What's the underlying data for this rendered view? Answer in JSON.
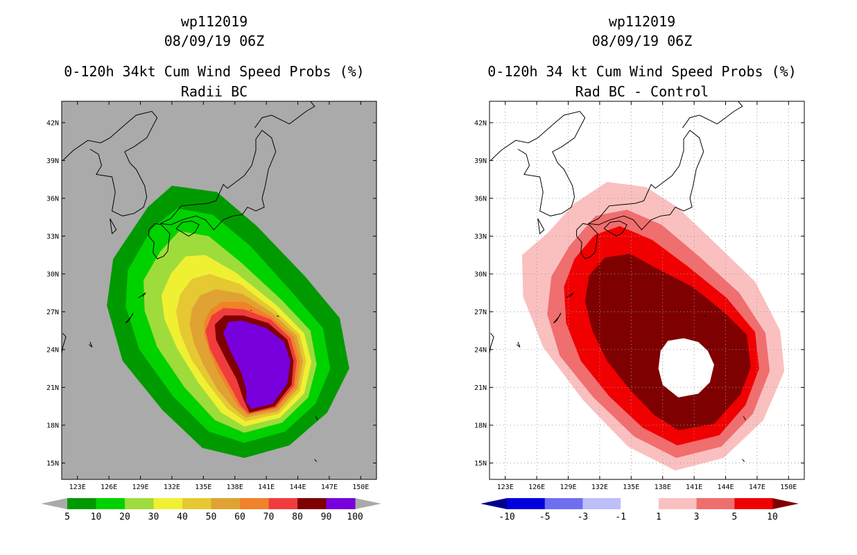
{
  "left_panel": {
    "storm_id": "wp112019",
    "datetime": "08/09/19 06Z",
    "title": "0-120h 34kt Cum Wind Speed Probs (%)",
    "subtitle": "Radii BC",
    "background_color": "#aaaaaa",
    "colorbar": {
      "colors": [
        "#009a00",
        "#00d200",
        "#9edc3c",
        "#f0f032",
        "#e6c832",
        "#e0a232",
        "#f0822a",
        "#f03c3c",
        "#7f0000",
        "#7800dc"
      ],
      "labels": [
        "5",
        "10",
        "20",
        "30",
        "40",
        "50",
        "60",
        "70",
        "80",
        "90",
        "100"
      ],
      "below_color": "#aaaaaa",
      "above_color": "#aaaaaa"
    }
  },
  "right_panel": {
    "storm_id": "wp112019",
    "datetime": "08/09/19 06Z",
    "title": "0-120h 34 kt Cum Wind Speed Probs (%)",
    "subtitle": "Rad BC - Control",
    "background_color": "#ffffff",
    "colorbar": {
      "colors": [
        "#0000dc",
        "#6e6ef0",
        "#bebef8",
        "#ffffff",
        "#fac0c0",
        "#f06e6e",
        "#f00000"
      ],
      "labels": [
        "-10",
        "-5",
        "-3",
        "-1",
        "1",
        "3",
        "5",
        "10"
      ],
      "below_color": "#00008c",
      "above_color": "#7f0000"
    }
  },
  "axes": {
    "lon_labels": [
      "123E",
      "126E",
      "129E",
      "132E",
      "135E",
      "138E",
      "141E",
      "144E",
      "147E",
      "150E"
    ],
    "lat_labels": [
      "42N",
      "39N",
      "36N",
      "33N",
      "30N",
      "27N",
      "24N",
      "21N",
      "18N",
      "15N"
    ],
    "lon_range": [
      121.5,
      151.5
    ],
    "lat_range": [
      13.7,
      43.7
    ]
  },
  "left_contours": [
    {
      "level": "5",
      "color": "#009a00",
      "points": [
        [
          138.9,
          15.4
        ],
        [
          143.2,
          16.4
        ],
        [
          146.8,
          19.0
        ],
        [
          148.9,
          22.5
        ],
        [
          148.0,
          26.5
        ],
        [
          144.7,
          29.8
        ],
        [
          140.1,
          33.8
        ],
        [
          136.3,
          36.5
        ],
        [
          132.0,
          37.0
        ],
        [
          129.7,
          35.3
        ],
        [
          126.4,
          31.2
        ],
        [
          125.8,
          27.5
        ],
        [
          127.3,
          23.1
        ],
        [
          131.1,
          19.2
        ],
        [
          134.9,
          16.2
        ]
      ]
    },
    {
      "level": "10",
      "color": "#00d200",
      "points": [
        [
          138.9,
          16.6
        ],
        [
          142.8,
          17.5
        ],
        [
          145.7,
          19.7
        ],
        [
          147.1,
          22.5
        ],
        [
          146.4,
          25.7
        ],
        [
          143.5,
          28.5
        ],
        [
          139.5,
          32.2
        ],
        [
          135.9,
          34.7
        ],
        [
          132.5,
          35.2
        ],
        [
          130.1,
          33.6
        ],
        [
          127.8,
          30.3
        ],
        [
          127.6,
          27.4
        ],
        [
          128.9,
          24.0
        ],
        [
          132.1,
          20.3
        ],
        [
          135.5,
          17.5
        ]
      ]
    },
    {
      "level": "20",
      "color": "#9edc3c",
      "points": [
        [
          138.9,
          17.4
        ],
        [
          142.5,
          18.2
        ],
        [
          145.0,
          20.2
        ],
        [
          145.8,
          22.8
        ],
        [
          145.2,
          25.5
        ],
        [
          142.5,
          27.9
        ],
        [
          138.6,
          30.9
        ],
        [
          135.5,
          33.0
        ],
        [
          132.7,
          33.4
        ],
        [
          130.9,
          31.8
        ],
        [
          129.3,
          29.5
        ],
        [
          129.4,
          27.1
        ],
        [
          130.6,
          24.2
        ],
        [
          133.2,
          21.0
        ],
        [
          136.1,
          18.4
        ]
      ]
    },
    {
      "level": "30",
      "color": "#f0f032",
      "points": [
        [
          138.9,
          17.9
        ],
        [
          142.3,
          18.6
        ],
        [
          144.6,
          20.5
        ],
        [
          145.3,
          23.0
        ],
        [
          144.6,
          25.3
        ],
        [
          142.0,
          27.5
        ],
        [
          138.1,
          30.1
        ],
        [
          135.2,
          31.5
        ],
        [
          133.3,
          31.4
        ],
        [
          131.9,
          30.0
        ],
        [
          131.0,
          28.3
        ],
        [
          131.3,
          26.4
        ],
        [
          132.5,
          24.1
        ],
        [
          134.5,
          21.4
        ],
        [
          136.7,
          19.0
        ]
      ]
    },
    {
      "level": "40",
      "color": "#e6c832",
      "points": [
        [
          139.0,
          18.3
        ],
        [
          142.2,
          18.9
        ],
        [
          144.2,
          20.7
        ],
        [
          144.8,
          23.1
        ],
        [
          144.2,
          25.2
        ],
        [
          141.7,
          27.2
        ],
        [
          138.5,
          29.2
        ],
        [
          135.6,
          30.0
        ],
        [
          133.9,
          29.6
        ],
        [
          132.8,
          28.4
        ],
        [
          132.4,
          27.0
        ],
        [
          132.8,
          25.3
        ],
        [
          133.8,
          23.3
        ],
        [
          135.5,
          21.2
        ],
        [
          137.3,
          19.3
        ]
      ]
    },
    {
      "level": "50",
      "color": "#e0a232",
      "points": [
        [
          139.0,
          18.6
        ],
        [
          142.1,
          19.1
        ],
        [
          144.0,
          20.9
        ],
        [
          144.5,
          23.1
        ],
        [
          143.9,
          25.1
        ],
        [
          141.6,
          26.9
        ],
        [
          138.8,
          28.4
        ],
        [
          136.2,
          28.8
        ],
        [
          134.7,
          28.3
        ],
        [
          133.9,
          27.2
        ],
        [
          133.7,
          26.0
        ],
        [
          134.1,
          24.5
        ],
        [
          135.0,
          22.8
        ],
        [
          136.3,
          20.9
        ],
        [
          137.7,
          19.5
        ]
      ]
    },
    {
      "level": "60",
      "color": "#f0822a",
      "points": [
        [
          139.2,
          18.8
        ],
        [
          142.0,
          19.3
        ],
        [
          143.8,
          21.0
        ],
        [
          144.2,
          23.1
        ],
        [
          143.6,
          25.0
        ],
        [
          141.5,
          26.6
        ],
        [
          138.9,
          27.8
        ],
        [
          136.8,
          27.8
        ],
        [
          135.7,
          27.2
        ],
        [
          135.1,
          26.2
        ],
        [
          135.1,
          25.1
        ],
        [
          135.6,
          23.8
        ],
        [
          136.4,
          22.2
        ],
        [
          137.5,
          20.6
        ],
        [
          138.3,
          19.5
        ]
      ]
    },
    {
      "level": "70",
      "color": "#f03c3c",
      "points": [
        [
          139.3,
          18.9
        ],
        [
          141.9,
          19.4
        ],
        [
          143.6,
          21.1
        ],
        [
          143.9,
          23.1
        ],
        [
          143.3,
          24.9
        ],
        [
          141.4,
          26.4
        ],
        [
          138.9,
          27.2
        ],
        [
          136.9,
          27.3
        ],
        [
          135.8,
          26.7
        ],
        [
          135.2,
          25.5
        ],
        [
          135.6,
          24.1
        ],
        [
          136.6,
          22.5
        ],
        [
          137.8,
          20.7
        ],
        [
          138.5,
          19.6
        ]
      ]
    },
    {
      "level": "80",
      "color": "#7f0000",
      "points": [
        [
          139.4,
          19.0
        ],
        [
          141.8,
          19.5
        ],
        [
          143.4,
          21.2
        ],
        [
          143.6,
          23.1
        ],
        [
          143.0,
          24.8
        ],
        [
          141.2,
          26.1
        ],
        [
          138.8,
          26.7
        ],
        [
          137.0,
          26.7
        ],
        [
          136.1,
          26.0
        ],
        [
          136.2,
          24.8
        ],
        [
          137.1,
          23.3
        ],
        [
          138.2,
          21.6
        ],
        [
          138.8,
          20.1
        ]
      ]
    },
    {
      "level": "90",
      "color": "#7800dc",
      "points": [
        [
          139.6,
          19.3
        ],
        [
          141.6,
          19.7
        ],
        [
          143.0,
          21.3
        ],
        [
          143.3,
          23.1
        ],
        [
          142.7,
          24.6
        ],
        [
          141.0,
          25.7
        ],
        [
          138.7,
          26.3
        ],
        [
          137.4,
          26.2
        ],
        [
          136.9,
          25.3
        ],
        [
          137.5,
          24.0
        ],
        [
          138.6,
          22.2
        ],
        [
          139.1,
          20.8
        ],
        [
          139.1,
          19.8
        ]
      ]
    }
  ],
  "right_contours": [
    {
      "level": "1",
      "color": "#fac0c0",
      "points": [
        [
          139.2,
          14.4
        ],
        [
          143.8,
          15.4
        ],
        [
          147.6,
          18.4
        ],
        [
          149.6,
          22.3
        ],
        [
          149.2,
          25.5
        ],
        [
          146.8,
          29.4
        ],
        [
          143.2,
          32.3
        ],
        [
          139.4,
          35.3
        ],
        [
          136.4,
          36.9
        ],
        [
          132.7,
          37.3
        ],
        [
          129.6,
          35.6
        ],
        [
          127.1,
          33.3
        ],
        [
          124.6,
          31.5
        ],
        [
          124.7,
          28.2
        ],
        [
          126.6,
          24.2
        ],
        [
          130.4,
          20.0
        ],
        [
          134.7,
          16.3
        ]
      ]
    },
    {
      "level": "3",
      "color": "#f06e6e",
      "points": [
        [
          139.3,
          15.4
        ],
        [
          143.6,
          16.3
        ],
        [
          146.6,
          18.9
        ],
        [
          148.2,
          22.3
        ],
        [
          147.8,
          25.3
        ],
        [
          145.3,
          28.5
        ],
        [
          141.6,
          31.3
        ],
        [
          137.9,
          33.9
        ],
        [
          134.6,
          35.1
        ],
        [
          131.6,
          34.6
        ],
        [
          129.1,
          32.2
        ],
        [
          127.4,
          29.8
        ],
        [
          127.0,
          26.8
        ],
        [
          128.2,
          23.5
        ],
        [
          131.4,
          20.2
        ],
        [
          135.3,
          17.1
        ]
      ]
    },
    {
      "level": "5",
      "color": "#f00000",
      "points": [
        [
          139.4,
          16.4
        ],
        [
          143.4,
          17.2
        ],
        [
          145.9,
          19.6
        ],
        [
          147.2,
          22.5
        ],
        [
          146.8,
          25.4
        ],
        [
          144.1,
          28.1
        ],
        [
          140.4,
          30.6
        ],
        [
          137.0,
          32.7
        ],
        [
          133.9,
          33.8
        ],
        [
          131.5,
          33.1
        ],
        [
          129.6,
          31.2
        ],
        [
          128.6,
          29.0
        ],
        [
          128.8,
          26.1
        ],
        [
          130.2,
          23.1
        ],
        [
          132.9,
          20.3
        ],
        [
          136.1,
          17.8
        ]
      ]
    },
    {
      "level": "10",
      "color": "#7f0000",
      "points": [
        [
          139.5,
          17.6
        ],
        [
          142.9,
          18.1
        ],
        [
          145.4,
          20.4
        ],
        [
          146.4,
          22.6
        ],
        [
          146.0,
          25.2
        ],
        [
          143.8,
          27.0
        ],
        [
          140.8,
          29.0
        ],
        [
          137.3,
          30.5
        ],
        [
          134.9,
          31.6
        ],
        [
          132.5,
          31.3
        ],
        [
          131.0,
          29.9
        ],
        [
          130.6,
          27.8
        ],
        [
          131.3,
          25.5
        ],
        [
          132.7,
          23.1
        ],
        [
          134.9,
          20.8
        ],
        [
          137.2,
          18.8
        ]
      ]
    },
    {
      "level": "blank",
      "color": "#ffffff",
      "points": [
        [
          139.5,
          20.2
        ],
        [
          141.4,
          20.5
        ],
        [
          142.5,
          21.4
        ],
        [
          142.9,
          22.8
        ],
        [
          142.3,
          23.9
        ],
        [
          141.4,
          24.6
        ],
        [
          140.0,
          24.9
        ],
        [
          138.5,
          24.7
        ],
        [
          137.8,
          23.9
        ],
        [
          137.6,
          22.5
        ],
        [
          138.0,
          21.2
        ]
      ]
    }
  ],
  "coast_paths": [
    [
      [
        121.6,
        39.0
      ],
      [
        122.6,
        39.8
      ],
      [
        124.0,
        40.6
      ],
      [
        125.2,
        40.4
      ],
      [
        126.1,
        40.8
      ],
      [
        127.6,
        41.9
      ],
      [
        128.6,
        42.6
      ],
      [
        130.1,
        42.9
      ],
      [
        130.6,
        42.4
      ]
    ],
    [
      [
        124.2,
        39.9
      ],
      [
        125.0,
        39.5
      ],
      [
        125.3,
        38.6
      ],
      [
        124.8,
        37.9
      ],
      [
        126.3,
        37.7
      ],
      [
        126.6,
        36.5
      ],
      [
        126.3,
        35.0
      ],
      [
        127.3,
        34.6
      ],
      [
        128.4,
        34.8
      ],
      [
        129.3,
        35.3
      ],
      [
        129.6,
        36.1
      ],
      [
        129.4,
        37.0
      ],
      [
        128.6,
        38.3
      ],
      [
        128.0,
        38.8
      ],
      [
        127.5,
        39.7
      ],
      [
        128.4,
        40.1
      ],
      [
        129.6,
        40.8
      ],
      [
        130.6,
        42.4
      ]
    ],
    [
      [
        130.9,
        34.0
      ],
      [
        131.9,
        34.4
      ],
      [
        132.9,
        35.4
      ],
      [
        134.1,
        35.5
      ],
      [
        135.4,
        35.6
      ],
      [
        136.2,
        35.8
      ],
      [
        136.9,
        37.1
      ],
      [
        137.3,
        36.8
      ],
      [
        138.9,
        37.8
      ],
      [
        139.6,
        38.6
      ],
      [
        140.0,
        39.8
      ],
      [
        140.0,
        40.7
      ],
      [
        140.6,
        41.4
      ],
      [
        141.5,
        40.8
      ],
      [
        141.9,
        39.7
      ],
      [
        141.2,
        38.3
      ],
      [
        140.9,
        37.0
      ],
      [
        140.6,
        36.0
      ],
      [
        140.8,
        35.3
      ],
      [
        140.0,
        35.0
      ],
      [
        139.2,
        35.3
      ],
      [
        138.7,
        34.7
      ],
      [
        137.8,
        34.6
      ],
      [
        136.9,
        34.3
      ],
      [
        136.0,
        33.5
      ],
      [
        135.2,
        34.3
      ],
      [
        134.3,
        34.6
      ],
      [
        133.0,
        34.3
      ],
      [
        131.9,
        33.9
      ],
      [
        130.9,
        34.0
      ]
    ],
    [
      [
        132.4,
        33.6
      ],
      [
        133.0,
        33.3
      ],
      [
        133.6,
        33.0
      ],
      [
        134.2,
        33.3
      ],
      [
        134.6,
        33.9
      ],
      [
        133.9,
        34.2
      ],
      [
        133.0,
        34.1
      ],
      [
        132.4,
        33.6
      ]
    ],
    [
      [
        129.8,
        33.5
      ],
      [
        130.4,
        34.0
      ],
      [
        131.0,
        33.9
      ],
      [
        131.8,
        33.2
      ],
      [
        131.6,
        31.8
      ],
      [
        131.2,
        31.4
      ],
      [
        130.6,
        31.2
      ],
      [
        130.2,
        31.7
      ],
      [
        130.3,
        32.5
      ],
      [
        129.8,
        33.0
      ],
      [
        129.8,
        33.5
      ]
    ],
    [
      [
        139.9,
        41.6
      ],
      [
        140.6,
        42.4
      ],
      [
        141.5,
        42.6
      ],
      [
        143.2,
        41.9
      ],
      [
        144.8,
        42.9
      ],
      [
        145.6,
        43.3
      ],
      [
        145.2,
        43.7
      ]
    ],
    [
      [
        128.8,
        28.1
      ],
      [
        129.5,
        28.5
      ],
      [
        129.2,
        28.2
      ]
    ],
    [
      [
        127.6,
        26.1
      ],
      [
        128.2,
        26.7
      ],
      [
        128.3,
        26.9
      ],
      [
        127.9,
        26.3
      ],
      [
        127.6,
        26.1
      ]
    ],
    [
      [
        126.1,
        34.4
      ],
      [
        126.7,
        33.5
      ],
      [
        126.3,
        33.2
      ],
      [
        126.1,
        34.4
      ]
    ],
    [
      [
        124.1,
        24.4
      ],
      [
        124.4,
        24.2
      ],
      [
        124.2,
        24.6
      ]
    ],
    [
      [
        121.6,
        25.3
      ],
      [
        121.9,
        25.0
      ],
      [
        121.6,
        24.2
      ],
      [
        121.4,
        23.2
      ],
      [
        121.0,
        22.6
      ]
    ],
    [
      [
        139.5,
        27.1
      ],
      [
        139.6,
        27.1
      ]
    ],
    [
      [
        142.0,
        26.7
      ],
      [
        142.2,
        26.6
      ]
    ],
    [
      [
        145.7,
        18.7
      ],
      [
        145.9,
        18.4
      ]
    ],
    [
      [
        145.6,
        15.3
      ],
      [
        145.8,
        15.1
      ]
    ]
  ]
}
